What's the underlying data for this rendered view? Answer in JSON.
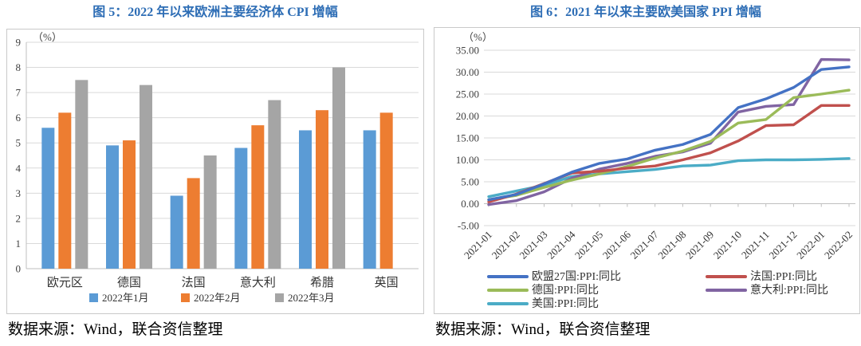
{
  "figures": [
    {
      "title": "图 5：2022 年以来欧洲主要经济体 CPI 增幅",
      "source": "数据来源：Wind，联合资信整理"
    },
    {
      "title": "图 6：2021 年以来主要欧美国家 PPI 增幅",
      "source": "数据来源：Wind，联合资信整理"
    }
  ],
  "colors": {
    "title_blue": "#2D6DB5",
    "grid": "#D9D9D9",
    "axis": "#BFBFBF",
    "tick_text": "#404040",
    "label_text": "#333333",
    "box_border": "#C9C9C9"
  },
  "chart_data": [
    {
      "type": "bar",
      "title": "图 5：2022 年以来欧洲主要经济体 CPI 增幅",
      "unit": "（%）",
      "categories": [
        "欧元区",
        "德国",
        "法国",
        "意大利",
        "希腊",
        "英国"
      ],
      "series": [
        {
          "name": "2022年1月",
          "color": "#5B9BD5",
          "values": [
            5.6,
            4.9,
            2.9,
            4.8,
            5.5,
            5.5
          ]
        },
        {
          "name": "2022年2月",
          "color": "#ED7D31",
          "values": [
            6.2,
            5.1,
            3.6,
            5.7,
            6.3,
            6.2
          ]
        },
        {
          "name": "2022年3月",
          "color": "#A5A5A5",
          "values": [
            7.5,
            7.3,
            4.5,
            6.7,
            8.0,
            null
          ]
        }
      ],
      "ylim": [
        0,
        9
      ],
      "ytick_step": 1,
      "ytick_decimals": 0,
      "grid": true,
      "legend_position": "bottom"
    },
    {
      "type": "line",
      "title": "图 6：2021 年以来主要欧美国家 PPI 增幅",
      "unit": "（%）",
      "x": [
        "2021-01",
        "2021-02",
        "2021-03",
        "2021-04",
        "2021-05",
        "2021-06",
        "2021-07",
        "2021-08",
        "2021-09",
        "2021-10",
        "2021-11",
        "2021-12",
        "2022-01",
        "2022-02"
      ],
      "series": [
        {
          "name": "欧盟27国:PPI:同比",
          "color": "#4472C4",
          "values": [
            0.9,
            2.1,
            4.5,
            7.2,
            9.2,
            10.2,
            12.2,
            13.5,
            15.8,
            21.9,
            23.9,
            26.5,
            30.6,
            31.2
          ]
        },
        {
          "name": "法国:PPI:同比",
          "color": "#C0504D",
          "values": [
            0.4,
            2.2,
            4.6,
            7.0,
            7.4,
            8.1,
            8.6,
            10.0,
            11.6,
            14.3,
            17.8,
            18.0,
            22.4,
            22.4
          ]
        },
        {
          "name": "德国:PPI:同比",
          "color": "#9BBB59",
          "values": [
            0.9,
            1.9,
            3.7,
            5.4,
            6.8,
            8.5,
            10.4,
            12.0,
            14.2,
            18.4,
            19.2,
            24.2,
            25.0,
            25.9
          ]
        },
        {
          "name": "意大利:PPI:同比",
          "color": "#8064A2",
          "values": [
            -0.2,
            0.7,
            2.7,
            5.8,
            7.9,
            9.2,
            10.8,
            11.8,
            13.8,
            20.9,
            22.2,
            22.6,
            32.9,
            32.8
          ]
        },
        {
          "name": "美国:PPI:同比",
          "color": "#4BACC6",
          "values": [
            1.6,
            2.9,
            4.2,
            6.2,
            6.8,
            7.3,
            7.8,
            8.6,
            8.8,
            9.8,
            10.0,
            10.0,
            10.1,
            10.3
          ]
        }
      ],
      "ylim": [
        -5,
        35
      ],
      "ytick_step": 5,
      "ytick_decimals": 2,
      "grid": true,
      "legend_position": "bottom-2col"
    }
  ]
}
